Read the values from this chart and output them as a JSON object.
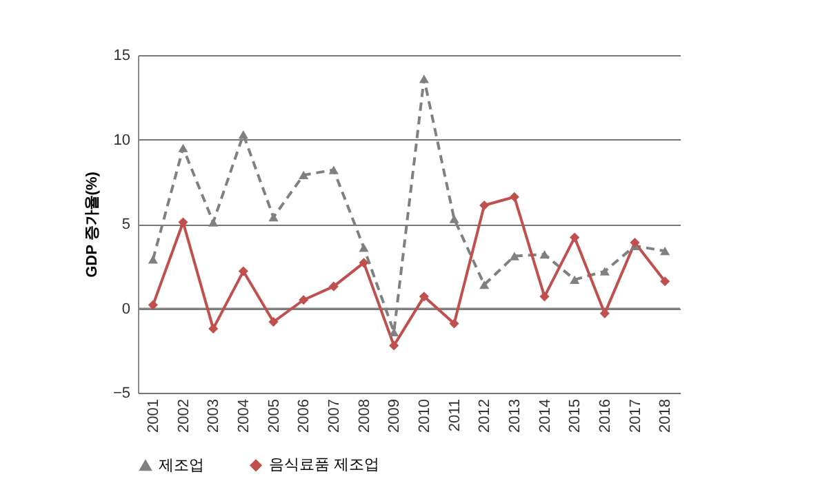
{
  "chart_data": {
    "type": "line",
    "ylabel": "GDP 증가율(%)",
    "categories": [
      "2001",
      "2002",
      "2003",
      "2004",
      "2005",
      "2006",
      "2007",
      "2008",
      "2009",
      "2010",
      "2011",
      "2012",
      "2013",
      "2014",
      "2015",
      "2016",
      "2017",
      "2018"
    ],
    "series": [
      {
        "name": "제조업",
        "color": "#808080",
        "marker": "triangle",
        "line_style": "dashed",
        "values": [
          2.9,
          9.5,
          5.1,
          10.3,
          5.4,
          7.9,
          8.2,
          3.6,
          -1.4,
          13.6,
          5.3,
          1.4,
          3.1,
          3.2,
          1.7,
          2.2,
          3.7,
          3.4
        ]
      },
      {
        "name": "음식료품 제조업",
        "color": "#c0504d",
        "marker": "diamond",
        "line_style": "solid",
        "values": [
          0.2,
          5.1,
          -1.2,
          2.2,
          -0.8,
          0.5,
          1.3,
          2.7,
          -2.2,
          0.7,
          -0.9,
          6.1,
          6.6,
          0.7,
          4.2,
          -0.3,
          3.9,
          1.6
        ]
      }
    ],
    "ylim": [
      -5,
      15
    ],
    "yticks": [
      -5,
      0,
      5,
      10,
      15
    ],
    "grid": "y",
    "legend": "bottom"
  }
}
